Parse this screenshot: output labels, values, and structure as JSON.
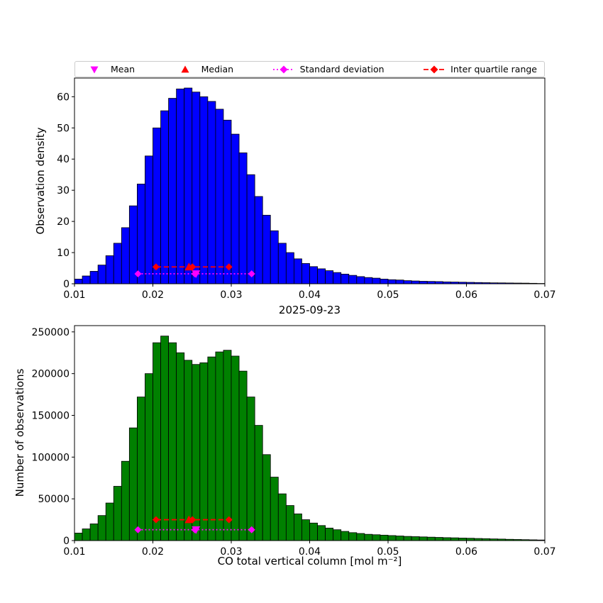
{
  "figure": {
    "title": "2025-09-23",
    "xlabel": "CO total vertical column [mol m⁻²]",
    "top_ylabel": "Observation density",
    "bottom_ylabel": "Number of observations"
  },
  "legend": {
    "items": [
      {
        "label": "Mean",
        "marker": "triangle-down",
        "color": "#FF00FF",
        "line": "none"
      },
      {
        "label": "Median",
        "marker": "triangle-up",
        "color": "#FF0000",
        "line": "none"
      },
      {
        "label": "Standard deviation",
        "marker": "diamond",
        "color": "#FF00FF",
        "line": "dotted"
      },
      {
        "label": "Inter quartile range",
        "marker": "diamond",
        "color": "#FF0000",
        "line": "dashed"
      }
    ]
  },
  "chart_data": [
    {
      "type": "bar",
      "kind": "histogram",
      "name": "density-histogram",
      "ylabel": "Observation density",
      "color": "#0000FF",
      "edge_color": "#000000",
      "xlim": [
        0.01,
        0.07
      ],
      "ylim": [
        0,
        66
      ],
      "xticks": [
        0.01,
        0.02,
        0.03,
        0.04,
        0.05,
        0.06,
        0.07
      ],
      "yticks": [
        0,
        10,
        20,
        30,
        40,
        50,
        60
      ],
      "bin_start": 0.01,
      "bin_width": 0.001,
      "values": [
        1.5,
        2.5,
        4,
        6,
        9,
        13,
        18,
        25,
        32,
        41,
        50,
        55.5,
        59.5,
        62.5,
        62.8,
        61.5,
        60,
        58.5,
        56,
        52.5,
        48,
        42,
        35,
        28,
        22,
        17,
        13,
        10,
        8,
        6.5,
        5.5,
        4.8,
        4.2,
        3.6,
        3.1,
        2.7,
        2.3,
        2.0,
        1.8,
        1.5,
        1.3,
        1.2,
        1.0,
        0.9,
        0.8,
        0.75,
        0.7,
        0.6,
        0.55,
        0.5,
        0.45,
        0.4,
        0.35,
        0.3,
        0.28,
        0.25,
        0.22,
        0.2,
        0.15,
        0.1
      ],
      "stats": {
        "mean": 0.0255,
        "median": 0.0246,
        "std_range": [
          0.0181,
          0.0326
        ],
        "iqr_range": [
          0.0204,
          0.0297
        ],
        "std_marker_y": 3.2,
        "iqr_marker_y": 5.4,
        "std_color": "#FF00FF",
        "iqr_color": "#FF0000"
      }
    },
    {
      "type": "bar",
      "kind": "histogram",
      "name": "counts-histogram",
      "ylabel": "Number of observations",
      "title": "2025-09-23",
      "xlabel": "CO total vertical column [mol m⁻²]",
      "color": "#008000",
      "edge_color": "#000000",
      "xlim": [
        0.01,
        0.07
      ],
      "ylim": [
        0,
        257500
      ],
      "xticks": [
        0.01,
        0.02,
        0.03,
        0.04,
        0.05,
        0.06,
        0.07
      ],
      "yticks": [
        0,
        50000,
        100000,
        150000,
        200000,
        250000
      ],
      "bin_start": 0.01,
      "bin_width": 0.001,
      "values": [
        9000,
        14000,
        20000,
        30000,
        45000,
        65000,
        95000,
        135000,
        172000,
        200000,
        237000,
        245000,
        237000,
        225000,
        216000,
        211000,
        213000,
        220000,
        226000,
        228000,
        221000,
        203000,
        172000,
        138000,
        103000,
        76000,
        56000,
        42000,
        32000,
        25000,
        21000,
        18000,
        15000,
        13000,
        11000,
        9500,
        8500,
        7500,
        7000,
        6500,
        6000,
        5500,
        5000,
        4700,
        4400,
        4100,
        3800,
        3500,
        3300,
        3000,
        2800,
        2500,
        2300,
        2000,
        1800,
        1500,
        1300,
        1100,
        900,
        700
      ],
      "stats": {
        "mean": 0.0255,
        "median": 0.0246,
        "std_range": [
          0.0181,
          0.0326
        ],
        "iqr_range": [
          0.0204,
          0.0297
        ],
        "std_marker_y": 13000,
        "iqr_marker_y": 25000,
        "std_color": "#FF00FF",
        "iqr_color": "#FF0000"
      }
    }
  ]
}
